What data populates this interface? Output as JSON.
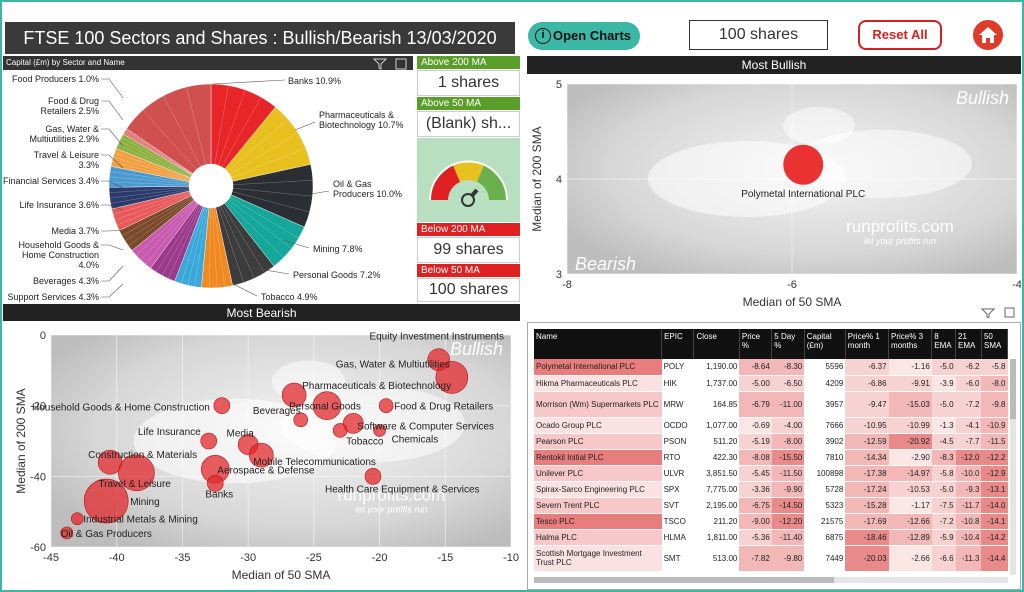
{
  "title": "FTSE 100 Sectors and Shares : Bullish/Bearish 13/03/2020 07:33",
  "buttons": {
    "open_charts": "Open Charts",
    "shares": "100 shares",
    "reset": "Reset All"
  },
  "pie_header": "Capital (£m) by Sector and Name",
  "gauges": {
    "above200_label": "Above 200 MA",
    "above200_value": "1 shares",
    "above50_label": "Above 50 MA",
    "above50_value": "(Blank) sh...",
    "below200_label": "Below 200 MA",
    "below200_value": "99 shares",
    "below50_label": "Below 50 MA",
    "below50_value": "100 shares"
  },
  "most_bullish_label": "Most Bullish",
  "most_bearish_label": "Most Bearish",
  "colors": {
    "teal": "#3bb8a5",
    "red": "#e02020",
    "green": "#6ab04c",
    "bubble": "#e0282c"
  },
  "chart_data": [
    {
      "type": "pie",
      "title": "Capital (£m) by Sector and Name",
      "slices": [
        {
          "label": "Banks",
          "pct": 10.9,
          "color": "#e8262a"
        },
        {
          "label": "Pharmaceuticals & Biotechnology",
          "pct": 10.7,
          "color": "#e8c020"
        },
        {
          "label": "Oil & Gas Producers",
          "pct": 10.0,
          "color": "#2b2f33"
        },
        {
          "label": "Mining",
          "pct": 7.8,
          "color": "#15a89a"
        },
        {
          "label": "Personal Goods",
          "pct": 7.2,
          "color": "#3c3c3c"
        },
        {
          "label": "Tobacco",
          "pct": 4.9,
          "color": "#f08a20"
        },
        {
          "label": "Support Services",
          "pct": 4.3,
          "color": "#3aa8d8"
        },
        {
          "label": "Beverages",
          "pct": 4.3,
          "color": "#9b3a8a"
        },
        {
          "label": "Household Goods & Home Construction",
          "pct": 4.0,
          "color": "#c85ab0"
        },
        {
          "label": "Media",
          "pct": 3.7,
          "color": "#7a4a2a"
        },
        {
          "label": "Life Insurance",
          "pct": 3.6,
          "color": "#e85a5a"
        },
        {
          "label": "Financial Services",
          "pct": 3.4,
          "color": "#2a3a6a"
        },
        {
          "label": "Travel & Leisure",
          "pct": 3.3,
          "color": "#4a9ad0"
        },
        {
          "label": "Gas, Water & Multiutilities",
          "pct": 2.9,
          "color": "#f0a040"
        },
        {
          "label": "Food & Drug Retailers",
          "pct": 2.5,
          "color": "#8ab040"
        },
        {
          "label": "Food Producers",
          "pct": 1.0,
          "color": "#e07070"
        },
        {
          "label": "Other",
          "pct": 15.5,
          "color": "#d05050"
        }
      ],
      "labels_shown": [
        "Banks 10.9%",
        "Pharmaceuticals & Biotechnology 10.7%",
        "Oil & Gas Producers 10.0%",
        "Mining 7.8%",
        "Personal Goods 7.2%",
        "Tobacco 4.9%",
        "Support Services 4.3%",
        "Beverages 4.3%",
        "Household Goods & Home Construction 4.0%",
        "Media 3.7%",
        "Life Insurance 3.6%",
        "Financial Services 3.4%",
        "Travel & Leisure 3.3%",
        "Gas, Water & Multiutilities 2.9%",
        "Food & Drug Retailers 2.5%",
        "Food Producers 1.0%"
      ]
    },
    {
      "type": "scatter",
      "title": "Most Bullish",
      "xlabel": "Median of 50 SMA",
      "ylabel": "Median of 200 SMA",
      "xlim": [
        -8,
        -4
      ],
      "ylim": [
        3,
        5
      ],
      "xticks": [
        -8,
        -6,
        -4
      ],
      "yticks": [
        3,
        4,
        5
      ],
      "watermark": "Bullish",
      "watermark2": "Bearish",
      "brand": "runprofits.com",
      "tagline": "let your profits run",
      "points": [
        {
          "label": "Polymetal International PLC",
          "x": -5.9,
          "y": 4.15,
          "size": 20
        }
      ]
    },
    {
      "type": "scatter",
      "title": "Most Bearish",
      "xlabel": "Median of 50 SMA",
      "ylabel": "Median of 200 SMA",
      "xlim": [
        -45,
        -10
      ],
      "ylim": [
        -60,
        0
      ],
      "xticks": [
        -45,
        -40,
        -35,
        -30,
        -25,
        -20,
        -15,
        -10
      ],
      "yticks": [
        0,
        -20,
        -40,
        -60
      ],
      "watermark": "Bullish",
      "brand": "runprofits.com",
      "tagline": "let your profits run",
      "points": [
        {
          "label": "Equity Investment Instruments",
          "x": -15.5,
          "y": -7,
          "size": 11
        },
        {
          "label": "Gas, Water & Multiutilities",
          "x": -14.5,
          "y": -12,
          "size": 16
        },
        {
          "label": "Pharmaceuticals & Biotechnology",
          "x": -26.5,
          "y": -17,
          "size": 12
        },
        {
          "label": "Household Goods & Home Construction",
          "x": -32,
          "y": -20,
          "size": 8
        },
        {
          "label": "Personal Goods",
          "x": -24,
          "y": -20,
          "size": 14
        },
        {
          "label": "Food & Drug Retailers",
          "x": -19.5,
          "y": -20,
          "size": 7
        },
        {
          "label": "Software & Computer Services",
          "x": -22,
          "y": -25,
          "size": 10
        },
        {
          "label": "Beverages",
          "x": -26,
          "y": -24,
          "size": 7
        },
        {
          "label": "Tobacco",
          "x": -23,
          "y": -27,
          "size": 7
        },
        {
          "label": "Chemicals",
          "x": -20,
          "y": -27,
          "size": 6
        },
        {
          "label": "Life Insurance",
          "x": -33,
          "y": -30,
          "size": 8
        },
        {
          "label": "Media",
          "x": -30,
          "y": -31,
          "size": 10
        },
        {
          "label": "Mobile Telecommunications",
          "x": -29,
          "y": -34,
          "size": 12
        },
        {
          "label": "Construction & Materials",
          "x": -40.5,
          "y": -36,
          "size": 12
        },
        {
          "label": "Aerospace & Defense",
          "x": -32.5,
          "y": -38,
          "size": 14
        },
        {
          "label": "Travel & Leisure",
          "x": -38.5,
          "y": -39,
          "size": 18
        },
        {
          "label": "Banks",
          "x": -32.5,
          "y": -42,
          "size": 8
        },
        {
          "label": "Health Care Equipment & Services",
          "x": -20.5,
          "y": -40,
          "size": 8
        },
        {
          "label": "Mining",
          "x": -40.8,
          "y": -47,
          "size": 22
        },
        {
          "label": "Industrial Metals & Mining",
          "x": -43,
          "y": -52,
          "size": 6
        },
        {
          "label": "Oil & Gas Producers",
          "x": -43.8,
          "y": -56,
          "size": 6
        }
      ]
    },
    {
      "type": "table",
      "columns": [
        "Name",
        "EPIC",
        "Close",
        "Price %",
        "5 Day %",
        "Capital (£m)",
        "Price% 1 month",
        "Price% 3 months",
        "8 EMA",
        "21 EMA",
        "50 SMA"
      ],
      "rows": [
        [
          "Polymetal International PLC",
          "POLY",
          "1,190.00",
          "-8.64",
          "-8.30",
          "5596",
          "-6.37",
          "-1.16",
          "-5.0",
          "-6.2",
          "-5.8"
        ],
        [
          "Hikma Pharmaceuticals PLC",
          "HIK",
          "1,737.00",
          "-5.00",
          "-6.50",
          "4209",
          "-6.86",
          "-9.91",
          "-3.9",
          "-6.0",
          "-8.0"
        ],
        [
          "Morrison (Wm) Supermarkets PLC",
          "MRW",
          "164.85",
          "-6.79",
          "-11.00",
          "3957",
          "-9.47",
          "-15.03",
          "-5.0",
          "-7.2",
          "-9.8"
        ],
        [
          "Ocado Group PLC",
          "OCDO",
          "1,077.00",
          "-0.69",
          "-4.00",
          "7666",
          "-10.95",
          "-10.99",
          "-1.3",
          "-4.1",
          "-10.9"
        ],
        [
          "Pearson PLC",
          "PSON",
          "511.20",
          "-5.19",
          "-8.00",
          "3902",
          "-12.59",
          "-20.92",
          "-4.5",
          "-7.7",
          "-11.5"
        ],
        [
          "Rentokil Initial PLC",
          "RTO",
          "422.30",
          "-8.08",
          "-15.50",
          "7810",
          "-14.34",
          "-2.90",
          "-8.3",
          "-12.0",
          "-12.2"
        ],
        [
          "Unilever PLC",
          "ULVR",
          "3,851.50",
          "-5.45",
          "-11.50",
          "100898",
          "-17.38",
          "-14.97",
          "-5.8",
          "-10.0",
          "-12.9"
        ],
        [
          "Spirax-Sarco Engineering PLC",
          "SPX",
          "7,775.00",
          "-3.36",
          "-9.90",
          "5728",
          "-17.24",
          "-10.53",
          "-5.0",
          "-9.3",
          "-13.1"
        ],
        [
          "Severn Trent PLC",
          "SVT",
          "2,195.00",
          "-6.75",
          "-14.50",
          "5323",
          "-15.28",
          "-1.17",
          "-7.5",
          "-11.7",
          "-14.0"
        ],
        [
          "Tesco PLC",
          "TSCO",
          "211.20",
          "-9.00",
          "-12.20",
          "21575",
          "-17.69",
          "-12.66",
          "-7.2",
          "-10.8",
          "-14.1"
        ],
        [
          "Halma PLC",
          "HLMA",
          "1,811.00",
          "-5.36",
          "-11.40",
          "6875",
          "-18.46",
          "-12.89",
          "-5.9",
          "-10.4",
          "-14.2"
        ],
        [
          "Scottish Mortgage Investment Trust PLC",
          "SMT",
          "513.00",
          "-7.82",
          "-9.80",
          "7449",
          "-20.03",
          "-2.66",
          "-6.6",
          "-11.3",
          "-14.4"
        ]
      ]
    }
  ]
}
